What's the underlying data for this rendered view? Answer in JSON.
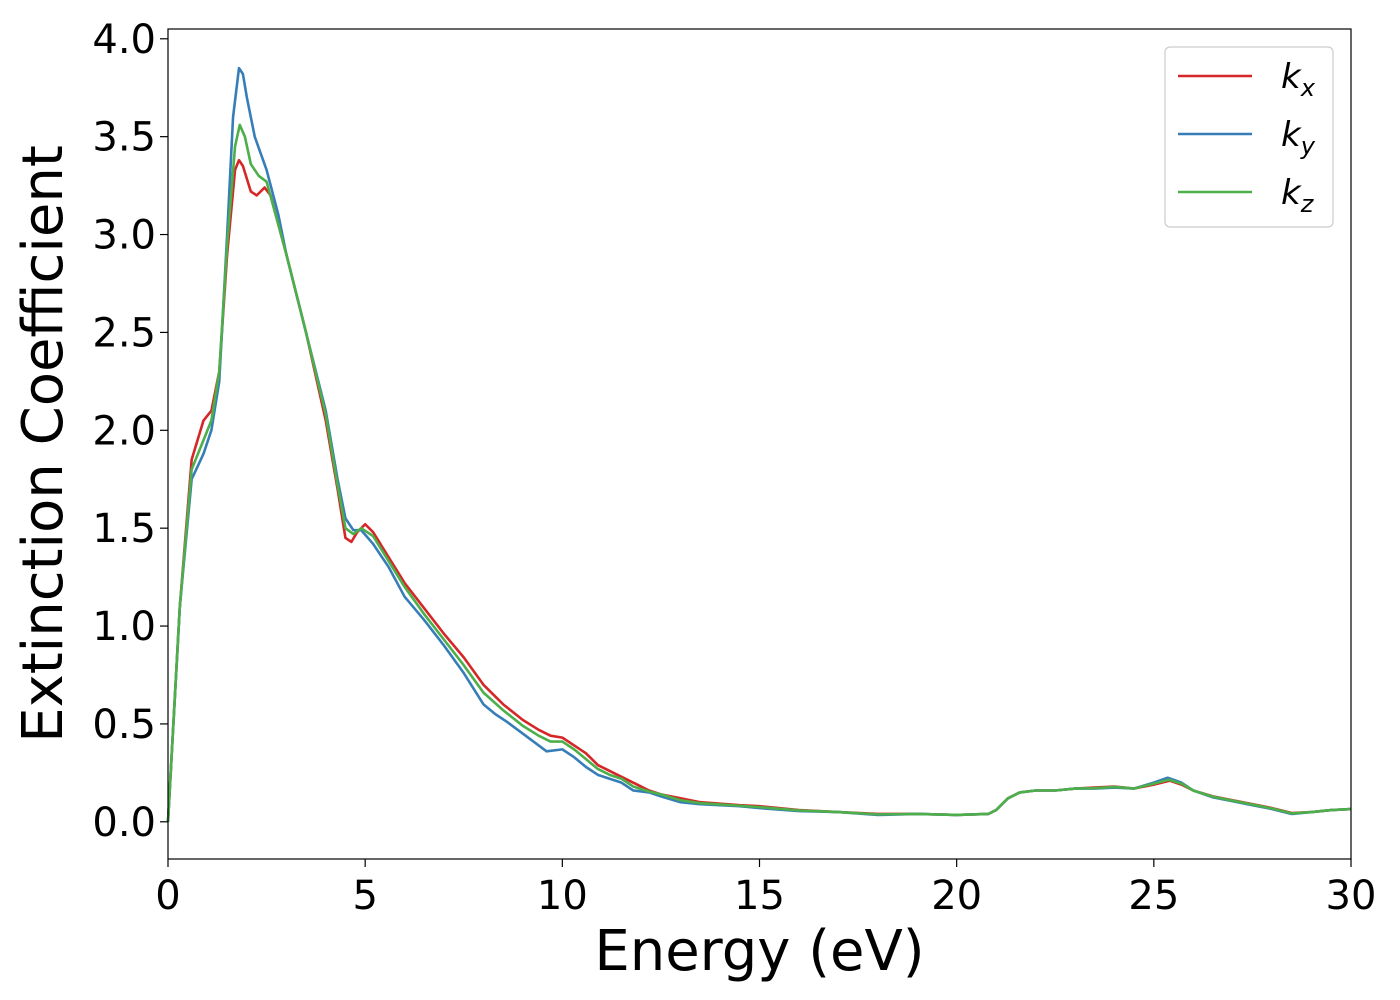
{
  "chart_data": {
    "type": "line",
    "xlabel": "Energy (eV)",
    "ylabel": "Extinction Coefficient",
    "xlim": [
      0,
      30
    ],
    "ylim": [
      -0.19,
      4.05
    ],
    "xticks": [
      0,
      5,
      10,
      15,
      20,
      25,
      30
    ],
    "xtick_labels": [
      "0",
      "5",
      "10",
      "15",
      "20",
      "25",
      "30"
    ],
    "yticks": [
      0.0,
      0.5,
      1.0,
      1.5,
      2.0,
      2.5,
      3.0,
      3.5,
      4.0
    ],
    "ytick_labels": [
      "0.0",
      "0.5",
      "1.0",
      "1.5",
      "2.0",
      "2.5",
      "3.0",
      "3.5",
      "4.0"
    ],
    "grid": false,
    "legend_position": "top-right",
    "series": [
      {
        "name": "k_x",
        "label_main": "k",
        "label_sub": "x",
        "color": "#d62728",
        "points": [
          [
            0,
            0
          ],
          [
            0.3,
            1.1
          ],
          [
            0.6,
            1.85
          ],
          [
            0.9,
            2.05
          ],
          [
            1.1,
            2.1
          ],
          [
            1.3,
            2.3
          ],
          [
            1.5,
            2.9
          ],
          [
            1.7,
            3.33
          ],
          [
            1.8,
            3.38
          ],
          [
            1.9,
            3.35
          ],
          [
            2.1,
            3.22
          ],
          [
            2.25,
            3.2
          ],
          [
            2.45,
            3.24
          ],
          [
            2.6,
            3.2
          ],
          [
            3.0,
            2.9
          ],
          [
            3.5,
            2.5
          ],
          [
            4.0,
            2.05
          ],
          [
            4.3,
            1.7
          ],
          [
            4.5,
            1.45
          ],
          [
            4.65,
            1.43
          ],
          [
            4.8,
            1.48
          ],
          [
            5.0,
            1.52
          ],
          [
            5.2,
            1.48
          ],
          [
            5.6,
            1.35
          ],
          [
            6.0,
            1.22
          ],
          [
            6.5,
            1.09
          ],
          [
            7.0,
            0.96
          ],
          [
            7.5,
            0.84
          ],
          [
            8.0,
            0.7
          ],
          [
            8.5,
            0.6
          ],
          [
            9.0,
            0.52
          ],
          [
            9.4,
            0.47
          ],
          [
            9.7,
            0.44
          ],
          [
            10.0,
            0.43
          ],
          [
            10.3,
            0.39
          ],
          [
            10.6,
            0.35
          ],
          [
            10.9,
            0.29
          ],
          [
            11.2,
            0.26
          ],
          [
            11.5,
            0.23
          ],
          [
            11.8,
            0.2
          ],
          [
            12.2,
            0.16
          ],
          [
            12.5,
            0.14
          ],
          [
            13.0,
            0.12
          ],
          [
            13.5,
            0.1
          ],
          [
            14.5,
            0.085
          ],
          [
            15.0,
            0.08
          ],
          [
            16.0,
            0.06
          ],
          [
            17.0,
            0.05
          ],
          [
            18.0,
            0.04
          ],
          [
            19.0,
            0.04
          ],
          [
            20.0,
            0.035
          ],
          [
            20.8,
            0.04
          ],
          [
            21.0,
            0.06
          ],
          [
            21.3,
            0.12
          ],
          [
            21.6,
            0.15
          ],
          [
            22.0,
            0.16
          ],
          [
            22.5,
            0.16
          ],
          [
            23.0,
            0.17
          ],
          [
            23.5,
            0.175
          ],
          [
            24.0,
            0.18
          ],
          [
            24.5,
            0.17
          ],
          [
            25.0,
            0.19
          ],
          [
            25.4,
            0.21
          ],
          [
            25.7,
            0.19
          ],
          [
            26.0,
            0.16
          ],
          [
            26.5,
            0.13
          ],
          [
            27.0,
            0.11
          ],
          [
            27.5,
            0.09
          ],
          [
            28.0,
            0.07
          ],
          [
            28.5,
            0.045
          ],
          [
            29.0,
            0.05
          ],
          [
            29.5,
            0.06
          ],
          [
            30.0,
            0.065
          ]
        ]
      },
      {
        "name": "k_y",
        "label_main": "k",
        "label_sub": "y",
        "color": "#377eb8",
        "points": [
          [
            0,
            0
          ],
          [
            0.3,
            1.1
          ],
          [
            0.6,
            1.75
          ],
          [
            0.9,
            1.88
          ],
          [
            1.1,
            2.0
          ],
          [
            1.3,
            2.25
          ],
          [
            1.5,
            3.0
          ],
          [
            1.65,
            3.6
          ],
          [
            1.8,
            3.85
          ],
          [
            1.9,
            3.82
          ],
          [
            2.0,
            3.7
          ],
          [
            2.2,
            3.5
          ],
          [
            2.5,
            3.33
          ],
          [
            2.8,
            3.1
          ],
          [
            3.0,
            2.9
          ],
          [
            3.5,
            2.5
          ],
          [
            4.0,
            2.1
          ],
          [
            4.3,
            1.75
          ],
          [
            4.5,
            1.55
          ],
          [
            4.7,
            1.49
          ],
          [
            4.9,
            1.49
          ],
          [
            5.2,
            1.42
          ],
          [
            5.6,
            1.3
          ],
          [
            6.0,
            1.15
          ],
          [
            6.5,
            1.03
          ],
          [
            7.0,
            0.9
          ],
          [
            7.5,
            0.76
          ],
          [
            8.0,
            0.6
          ],
          [
            8.3,
            0.55
          ],
          [
            8.6,
            0.51
          ],
          [
            9.0,
            0.45
          ],
          [
            9.4,
            0.39
          ],
          [
            9.6,
            0.36
          ],
          [
            10.0,
            0.37
          ],
          [
            10.3,
            0.33
          ],
          [
            10.6,
            0.28
          ],
          [
            10.9,
            0.24
          ],
          [
            11.2,
            0.22
          ],
          [
            11.5,
            0.2
          ],
          [
            11.8,
            0.16
          ],
          [
            12.2,
            0.15
          ],
          [
            12.5,
            0.13
          ],
          [
            13.0,
            0.1
          ],
          [
            13.5,
            0.09
          ],
          [
            14.5,
            0.08
          ],
          [
            15.0,
            0.07
          ],
          [
            16.0,
            0.055
          ],
          [
            17.0,
            0.05
          ],
          [
            18.0,
            0.035
          ],
          [
            19.0,
            0.04
          ],
          [
            20.0,
            0.035
          ],
          [
            20.8,
            0.04
          ],
          [
            21.0,
            0.06
          ],
          [
            21.3,
            0.12
          ],
          [
            21.6,
            0.15
          ],
          [
            22.0,
            0.16
          ],
          [
            22.5,
            0.16
          ],
          [
            23.0,
            0.17
          ],
          [
            23.5,
            0.17
          ],
          [
            24.0,
            0.175
          ],
          [
            24.5,
            0.17
          ],
          [
            25.0,
            0.2
          ],
          [
            25.35,
            0.225
          ],
          [
            25.7,
            0.2
          ],
          [
            26.0,
            0.16
          ],
          [
            26.5,
            0.125
          ],
          [
            27.0,
            0.105
          ],
          [
            27.5,
            0.085
          ],
          [
            28.0,
            0.065
          ],
          [
            28.5,
            0.04
          ],
          [
            29.0,
            0.05
          ],
          [
            29.5,
            0.06
          ],
          [
            30.0,
            0.065
          ]
        ]
      },
      {
        "name": "k_z",
        "label_main": "k",
        "label_sub": "z",
        "color": "#4daf4a",
        "points": [
          [
            0,
            0
          ],
          [
            0.3,
            1.1
          ],
          [
            0.6,
            1.8
          ],
          [
            0.9,
            1.95
          ],
          [
            1.1,
            2.05
          ],
          [
            1.3,
            2.3
          ],
          [
            1.5,
            2.95
          ],
          [
            1.7,
            3.45
          ],
          [
            1.82,
            3.56
          ],
          [
            1.95,
            3.5
          ],
          [
            2.1,
            3.36
          ],
          [
            2.3,
            3.3
          ],
          [
            2.5,
            3.27
          ],
          [
            2.8,
            3.05
          ],
          [
            3.0,
            2.9
          ],
          [
            3.5,
            2.5
          ],
          [
            4.0,
            2.08
          ],
          [
            4.3,
            1.72
          ],
          [
            4.5,
            1.5
          ],
          [
            4.7,
            1.47
          ],
          [
            4.9,
            1.5
          ],
          [
            5.2,
            1.46
          ],
          [
            5.6,
            1.33
          ],
          [
            6.0,
            1.2
          ],
          [
            6.5,
            1.06
          ],
          [
            7.0,
            0.93
          ],
          [
            7.5,
            0.8
          ],
          [
            8.0,
            0.66
          ],
          [
            8.5,
            0.57
          ],
          [
            9.0,
            0.49
          ],
          [
            9.4,
            0.44
          ],
          [
            9.7,
            0.41
          ],
          [
            10.0,
            0.41
          ],
          [
            10.3,
            0.37
          ],
          [
            10.6,
            0.32
          ],
          [
            10.9,
            0.27
          ],
          [
            11.2,
            0.24
          ],
          [
            11.5,
            0.22
          ],
          [
            11.8,
            0.18
          ],
          [
            12.2,
            0.155
          ],
          [
            12.5,
            0.14
          ],
          [
            13.0,
            0.11
          ],
          [
            13.5,
            0.095
          ],
          [
            14.5,
            0.082
          ],
          [
            15.0,
            0.075
          ],
          [
            16.0,
            0.058
          ],
          [
            17.0,
            0.05
          ],
          [
            18.0,
            0.038
          ],
          [
            19.0,
            0.04
          ],
          [
            20.0,
            0.035
          ],
          [
            20.8,
            0.04
          ],
          [
            21.0,
            0.06
          ],
          [
            21.3,
            0.12
          ],
          [
            21.6,
            0.15
          ],
          [
            22.0,
            0.16
          ],
          [
            22.5,
            0.16
          ],
          [
            23.0,
            0.17
          ],
          [
            23.5,
            0.172
          ],
          [
            24.0,
            0.178
          ],
          [
            24.5,
            0.17
          ],
          [
            25.0,
            0.195
          ],
          [
            25.38,
            0.215
          ],
          [
            25.7,
            0.195
          ],
          [
            26.0,
            0.16
          ],
          [
            26.5,
            0.128
          ],
          [
            27.0,
            0.108
          ],
          [
            27.5,
            0.088
          ],
          [
            28.0,
            0.068
          ],
          [
            28.5,
            0.043
          ],
          [
            29.0,
            0.05
          ],
          [
            29.5,
            0.06
          ],
          [
            30.0,
            0.065
          ]
        ]
      }
    ]
  }
}
